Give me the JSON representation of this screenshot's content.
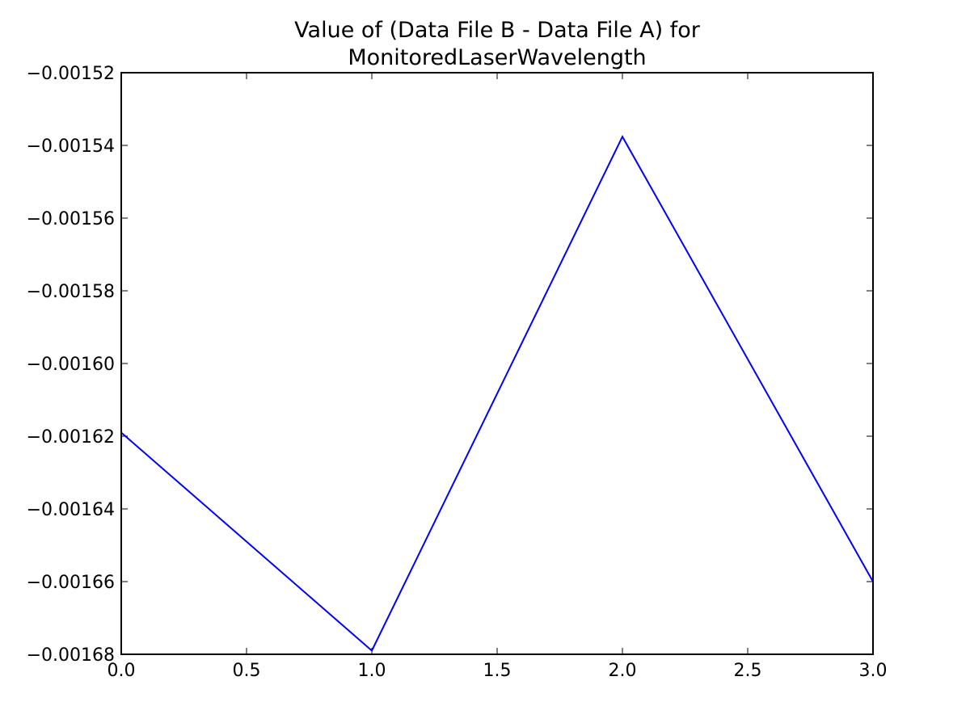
{
  "chart_data": {
    "type": "line",
    "title": [
      "Value of (Data File B - Data File A) for",
      "MonitoredLaserWavelength"
    ],
    "x": [
      0,
      1,
      2,
      3
    ],
    "series": [
      {
        "name": "MonitoredLaserWavelength",
        "color": "#0000ff",
        "values": [
          -0.001619,
          -0.001679,
          -0.0015376,
          -0.00166
        ]
      }
    ],
    "xlim": [
      0,
      3
    ],
    "xticks": [
      {
        "value": 0,
        "label": "0.0"
      },
      0.5,
      {
        "value": 1,
        "label": "1.0"
      },
      1.5,
      {
        "value": 2,
        "label": "2.0"
      },
      2.5,
      {
        "value": 3,
        "label": "3.0"
      }
    ],
    "ylim": [
      -0.00168,
      -0.00152
    ],
    "yticks": [
      {
        "value": -0.00168,
        "label": "−0.00168"
      },
      {
        "value": -0.00166,
        "label": "−0.00166"
      },
      {
        "value": -0.00164,
        "label": "−0.00164"
      },
      {
        "value": -0.00162,
        "label": "−0.00162"
      },
      {
        "value": -0.0016,
        "label": "−0.00160"
      },
      {
        "value": -0.00158,
        "label": "−0.00158"
      },
      {
        "value": -0.00156,
        "label": "−0.00156"
      },
      {
        "value": -0.00154,
        "label": "−0.00154"
      },
      {
        "value": -0.00152,
        "label": "−0.00152"
      }
    ],
    "grid": false
  }
}
